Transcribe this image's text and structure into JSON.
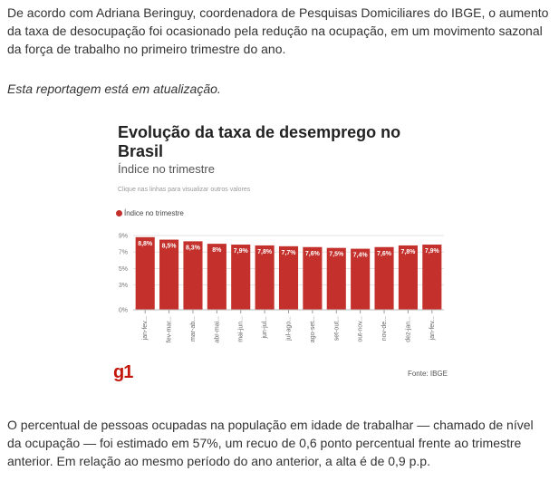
{
  "article": {
    "paragraph_1": "De acordo com Adriana Beringuy, coordenadora de Pesquisas Domiciliares do IBGE, o aumento da taxa de desocupação foi ocasionado pela redução na ocupação, em um movimento sazonal da força de trabalho no primeiro trimestre do ano.",
    "update_note": "Esta reportagem está em atualização.",
    "paragraph_2": "O percentual de pessoas ocupadas na população em idade de trabalhar — chamado de nível da ocupação — foi estimado em 57%, um recuo de 0,6 ponto percentual frente ao trimestre anterior. Em relação ao mesmo período do ano anterior, a alta é de 0,9 p.p."
  },
  "chart_data": {
    "type": "bar",
    "title": "Evolução da taxa de desemprego no Brasil",
    "subtitle": "Índice no trimestre",
    "hint": "Clique nas linhas para visualizar outros valores",
    "legend": [
      "Índice no trimestre"
    ],
    "categories": [
      "jan-fev...",
      "fev-mar...",
      "mar-ab...",
      "abr-mai...",
      "mai-jun...",
      "jun-jul...",
      "jul-ago...",
      "ago-set...",
      "set-out...",
      "out-nov...",
      "nov-de...",
      "dez-jan...",
      "jan-fev..."
    ],
    "series": [
      {
        "name": "Índice no trimestre",
        "values": [
          8.8,
          8.5,
          8.3,
          8.0,
          7.9,
          7.8,
          7.7,
          7.6,
          7.5,
          7.4,
          7.6,
          7.8,
          7.9
        ],
        "labels": [
          "8,8%",
          "8,5%",
          "8,3%",
          "8%",
          "7,9%",
          "7,8%",
          "7,7%",
          "7,6%",
          "7,5%",
          "7,4%",
          "7,6%",
          "7,8%",
          "7,9%"
        ]
      }
    ],
    "yticks": [
      0,
      3,
      5,
      7,
      9
    ],
    "ytick_labels": [
      "0%",
      "3%",
      "5%",
      "7%",
      "9%"
    ],
    "ylim": [
      0,
      9
    ],
    "grid": true,
    "bar_color": "#c4302b",
    "source": "Fonte: IBGE",
    "logo": "g1"
  }
}
